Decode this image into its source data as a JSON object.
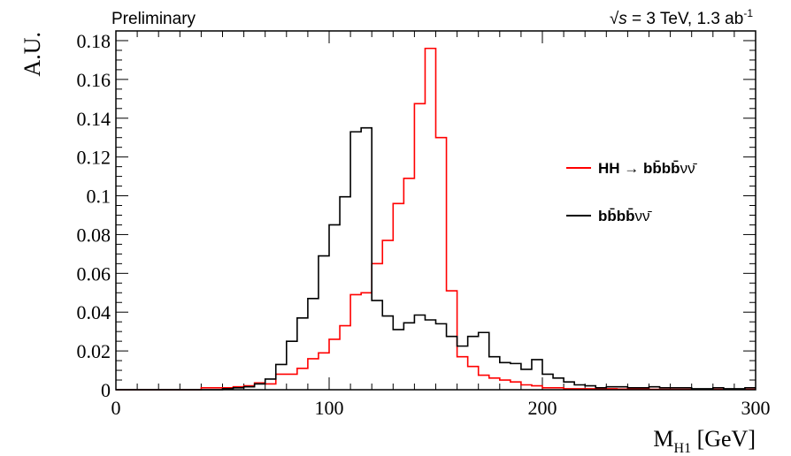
{
  "chart_data": {
    "type": "line",
    "title": "",
    "header_left": "Preliminary",
    "header_right": {
      "sqrt": "√",
      "s": "s",
      "energy": " = 3 TeV, 1.3 ab",
      "exp": "-1"
    },
    "ylabel": "A.U.",
    "xlabel": {
      "main": "M",
      "sub": "H1",
      "unit": " [GeV]"
    },
    "xlim": [
      0,
      300
    ],
    "ylim": [
      0,
      0.185
    ],
    "grid": false,
    "legend_position": "right",
    "x_ticks": [
      {
        "value": 0,
        "label": "0"
      },
      {
        "value": 100,
        "label": "100"
      },
      {
        "value": 200,
        "label": "200"
      },
      {
        "value": 300,
        "label": "300"
      }
    ],
    "y_ticks": [
      {
        "value": 0,
        "label": "0"
      },
      {
        "value": 0.02,
        "label": "0.02"
      },
      {
        "value": 0.04,
        "label": "0.04"
      },
      {
        "value": 0.06,
        "label": "0.06"
      },
      {
        "value": 0.08,
        "label": "0.08"
      },
      {
        "value": 0.1,
        "label": "0.1"
      },
      {
        "value": 0.12,
        "label": "0.12"
      },
      {
        "value": 0.14,
        "label": "0.14"
      },
      {
        "value": 0.16,
        "label": "0.16"
      },
      {
        "value": 0.18,
        "label": "0.18"
      }
    ],
    "bin_width": 5,
    "bin_edges_start": 0,
    "series": [
      {
        "name": "HH → bb̄bb̄νν̄",
        "name_parts": {
          "bold": "HH",
          "arrow": " → ",
          "final": "bb̄bb̄",
          "rest": "νν̄"
        },
        "color": "#ff0000",
        "values": [
          0.0,
          0.0,
          0.0,
          0.0,
          0.0,
          0.0,
          0.0,
          0.0,
          0.001,
          0.001,
          0.001,
          0.0015,
          0.002,
          0.0035,
          0.003,
          0.008,
          0.008,
          0.011,
          0.016,
          0.019,
          0.026,
          0.033,
          0.049,
          0.05,
          0.065,
          0.077,
          0.096,
          0.109,
          0.1475,
          0.176,
          0.13,
          0.051,
          0.017,
          0.012,
          0.0075,
          0.006,
          0.005,
          0.004,
          0.0025,
          0.002,
          0.001,
          0.001,
          0.0005,
          0.0005,
          0.0005,
          0.0005,
          0.0005,
          0.0003,
          0.0003,
          0.0003,
          0.0002,
          0.0002,
          0.0002,
          0.0002,
          0.0002,
          0.0002,
          0.0002,
          0.0002,
          0.0002,
          0.0002
        ]
      },
      {
        "name": "bb̄bb̄νν̄",
        "name_parts": {
          "bold": "",
          "arrow": "",
          "final": "bb̄bb̄",
          "rest": "νν̄"
        },
        "color": "#000000",
        "values": [
          0.0,
          0.0,
          0.0,
          0.0,
          0.0,
          0.0,
          0.0,
          0.0,
          0.0,
          0.0,
          0.0005,
          0.001,
          0.0015,
          0.003,
          0.0055,
          0.013,
          0.025,
          0.037,
          0.047,
          0.069,
          0.085,
          0.0995,
          0.133,
          0.135,
          0.046,
          0.038,
          0.031,
          0.0345,
          0.0385,
          0.036,
          0.034,
          0.0275,
          0.0225,
          0.0275,
          0.0295,
          0.017,
          0.014,
          0.0135,
          0.0105,
          0.0155,
          0.008,
          0.006,
          0.004,
          0.0025,
          0.002,
          0.001,
          0.0015,
          0.0015,
          0.001,
          0.001,
          0.0015,
          0.001,
          0.001,
          0.001,
          0.0005,
          0.0005,
          0.001,
          0.0005,
          0.0005,
          0.001
        ]
      }
    ]
  }
}
